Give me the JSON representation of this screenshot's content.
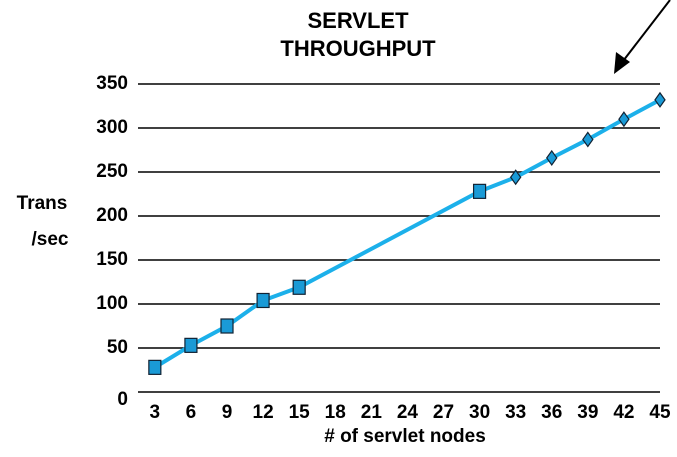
{
  "chart_data": {
    "type": "line",
    "title": [
      "SERVLET",
      "THROUGHPUT"
    ],
    "y_label": [
      "Trans",
      "/sec"
    ],
    "x_label": "# of servlet nodes",
    "x": [
      3,
      6,
      9,
      12,
      15,
      30,
      33,
      36,
      39,
      42,
      45
    ],
    "series": [
      {
        "color": "#1cb0ea",
        "values": [
          28,
          53,
          75,
          104,
          119,
          228,
          244,
          266,
          287,
          310,
          332
        ],
        "markers": [
          "square",
          "square",
          "square",
          "square",
          "square",
          "square",
          "diamond",
          "diamond",
          "diamond",
          "diamond",
          "diamond"
        ],
        "marker_color": "#1a9ad6"
      }
    ],
    "xlim": [
      1.6,
      45
    ],
    "xticks": [
      3,
      6,
      9,
      12,
      15,
      18,
      21,
      24,
      27,
      30,
      33,
      36,
      39,
      42,
      45
    ],
    "ylim": [
      0,
      350
    ],
    "yticks": [
      0,
      50,
      100,
      150,
      200,
      250,
      300,
      350
    ],
    "grid": true
  }
}
